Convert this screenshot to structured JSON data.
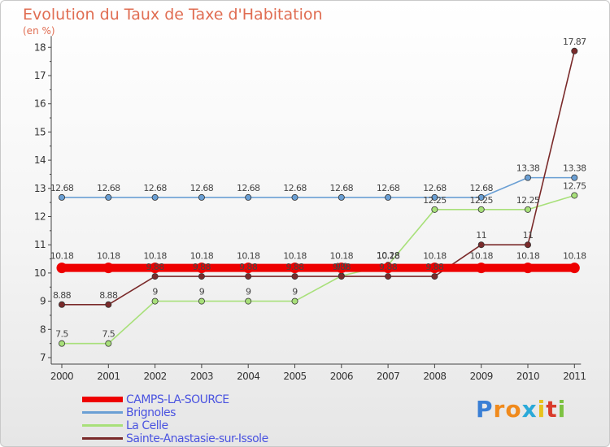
{
  "title": "Evolution du Taux de Taxe d'Habitation",
  "subtitle": "(en %)",
  "logo": {
    "letters": [
      "P",
      "r",
      "o",
      "x",
      "i",
      "t",
      "i"
    ],
    "colors": [
      "#3a7fd5",
      "#f08a1c",
      "#f08a1c",
      "#2aa9d8",
      "#e8c21b",
      "#d93b2b",
      "#7dc242"
    ]
  },
  "chart_data": {
    "type": "line",
    "title": "Evolution du Taux de Taxe d'Habitation",
    "ylabel": "(en %)",
    "xlabel": "",
    "categories": [
      "2000",
      "2001",
      "2002",
      "2003",
      "2004",
      "2005",
      "2006",
      "2007",
      "2008",
      "2009",
      "2010",
      "2011"
    ],
    "ylim": [
      7,
      18
    ],
    "yticks": [
      "7",
      "8",
      "9",
      "10",
      "11",
      "12",
      "13",
      "14",
      "15",
      "16",
      "17",
      "18"
    ],
    "grid": false,
    "legend": "bottom-left",
    "series": [
      {
        "name": "CAMPS-LA-SOURCE",
        "color": "#ee0000",
        "style": "thick",
        "values": [
          10.18,
          10.18,
          10.18,
          10.18,
          10.18,
          10.18,
          10.18,
          10.18,
          10.18,
          10.18,
          10.18,
          10.18
        ],
        "labels": [
          "10.18",
          "10.18",
          "10.18",
          "10.18",
          "10.18",
          "10.18",
          "10.18",
          "10.18",
          "10.18",
          "10.18",
          "10.18",
          "10.18"
        ]
      },
      {
        "name": "Brignoles",
        "color": "#6a9fd4",
        "style": "thin",
        "values": [
          12.68,
          12.68,
          12.68,
          12.68,
          12.68,
          12.68,
          12.68,
          12.68,
          12.68,
          12.68,
          13.38,
          13.38
        ],
        "labels": [
          "12.68",
          "12.68",
          "12.68",
          "12.68",
          "12.68",
          "12.68",
          "12.68",
          "12.68",
          "12.68",
          "12.68",
          "13.38",
          "13.38"
        ]
      },
      {
        "name": "La Celle",
        "color": "#a8e07a",
        "style": "thin",
        "values": [
          7.5,
          7.5,
          9,
          9,
          9,
          9,
          9.9,
          10.28,
          12.25,
          12.25,
          12.25,
          12.75
        ],
        "labels": [
          "7.5",
          "7.5",
          "9",
          "9",
          "9",
          "9",
          "9.9",
          "10.28",
          "12.25",
          "12.25",
          "12.25",
          "12.75"
        ]
      },
      {
        "name": "Sainte-Anastasie-sur-Issole",
        "color": "#7a2a2a",
        "style": "thin",
        "values": [
          8.88,
          8.88,
          9.88,
          9.88,
          9.88,
          9.88,
          9.88,
          9.88,
          9.88,
          11,
          11,
          17.87
        ],
        "labels": [
          "8.88",
          "8.88",
          "9.88",
          "9.88",
          "9.88",
          "9.88",
          "9.88",
          "9.88",
          "9.88",
          "11",
          "11",
          "17.87"
        ]
      }
    ]
  }
}
